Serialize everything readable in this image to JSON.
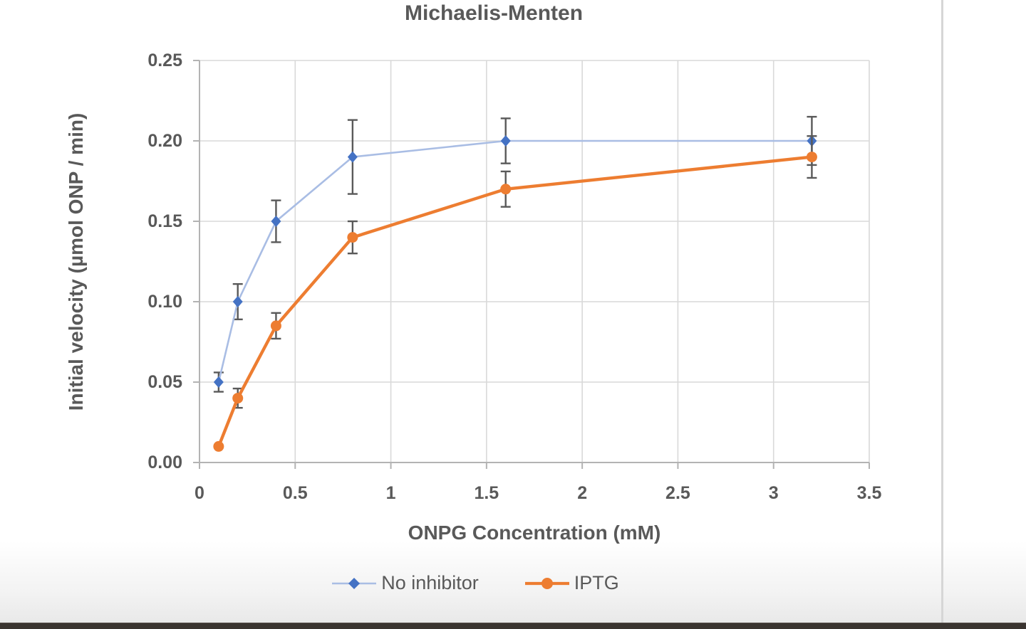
{
  "chart_data": {
    "type": "line",
    "title": "Michaelis-Menten",
    "xlabel": "ONPG Concentration (mM)",
    "ylabel": "Initial velocity (µmol ONP / min)",
    "xlim": [
      0,
      3.5
    ],
    "ylim": [
      0,
      0.25
    ],
    "grid": true,
    "legend_position": "bottom",
    "x_ticks": [
      0,
      0.5,
      1,
      1.5,
      2,
      2.5,
      3,
      3.5
    ],
    "x_tick_labels": [
      "0",
      "0.5",
      "1",
      "1.5",
      "2",
      "2.5",
      "3",
      "3.5"
    ],
    "y_ticks": [
      0,
      0.05,
      0.1,
      0.15,
      0.2,
      0.25
    ],
    "y_tick_labels": [
      "0.00",
      "0.05",
      "0.10",
      "0.15",
      "0.20",
      "0.25"
    ],
    "x": [
      0.1,
      0.2,
      0.4,
      0.8,
      1.6,
      3.2
    ],
    "series": [
      {
        "name": "No inhibitor",
        "values": [
          0.05,
          0.1,
          0.15,
          0.19,
          0.2,
          0.2
        ],
        "errors": [
          0.006,
          0.011,
          0.013,
          0.023,
          0.014,
          0.015
        ],
        "marker": "diamond",
        "marker_color": "#4472C4",
        "line_color": "#A9BDE4",
        "line_width": 2.6
      },
      {
        "name": "IPTG",
        "values": [
          0.01,
          0.04,
          0.085,
          0.14,
          0.17,
          0.19
        ],
        "errors": [
          0,
          0.006,
          0.008,
          0.01,
          0.011,
          0.013
        ],
        "marker": "circle",
        "marker_color": "#ED7D31",
        "line_color": "#ED7D31",
        "line_width": 4.4
      }
    ],
    "colors": {
      "text": "#595959",
      "gridline": "#d9d9d9",
      "axis_line": "#b3b3b3",
      "error_bar": "#595959"
    }
  }
}
